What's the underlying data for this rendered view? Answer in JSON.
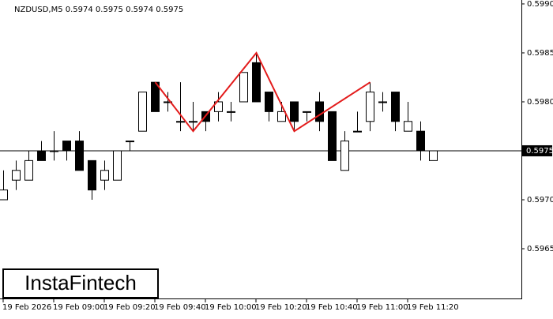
{
  "chart_data": {
    "type": "candlestick",
    "title": "NZDUSD,M5  0.5974 0.5975 0.5974 0.5975",
    "categories": [
      "19 Feb 2026",
      null,
      null,
      null,
      "19 Feb 09:00",
      null,
      null,
      null,
      "19 Feb 09:20",
      null,
      null,
      null,
      "19 Feb 09:40",
      null,
      null,
      null,
      "19 Feb 10:00",
      null,
      null,
      null,
      "19 Feb 10:20",
      null,
      null,
      null,
      "19 Feb 10:40",
      null,
      null,
      null,
      "19 Feb 11:00",
      null,
      null,
      null,
      "19 Feb 11:20",
      null,
      null
    ],
    "open": [
      0.597,
      0.5972,
      0.5972,
      0.5975,
      0.5975,
      0.5976,
      0.5976,
      0.5974,
      0.5972,
      0.5972,
      0.5976,
      0.5977,
      0.5982,
      0.598,
      0.5978,
      0.5978,
      0.5979,
      0.5979,
      0.5979,
      0.598,
      0.5984,
      0.5981,
      0.5978,
      0.598,
      0.5979,
      0.598,
      0.5979,
      0.5973,
      0.5977,
      0.5978,
      0.598,
      0.5981,
      0.5977,
      0.5977,
      0.5974
    ],
    "high": [
      0.5973,
      0.5974,
      0.5975,
      0.5976,
      0.5977,
      0.5976,
      0.5977,
      0.5974,
      0.5974,
      0.5975,
      0.5976,
      0.5981,
      0.5982,
      0.5981,
      0.5982,
      0.598,
      0.5979,
      0.5981,
      0.598,
      0.5983,
      0.5985,
      0.5981,
      0.598,
      0.598,
      0.5979,
      0.5981,
      0.5979,
      0.5977,
      0.5979,
      0.5982,
      0.5981,
      0.5981,
      0.598,
      0.5978,
      0.5975
    ],
    "low": [
      0.597,
      0.5971,
      0.5972,
      0.5974,
      0.5974,
      0.5974,
      0.5973,
      0.597,
      0.5971,
      0.5972,
      0.5975,
      0.5977,
      0.5979,
      0.5979,
      0.5977,
      0.5977,
      0.5977,
      0.5978,
      0.5978,
      0.598,
      0.598,
      0.5978,
      0.5978,
      0.5977,
      0.5978,
      0.5977,
      0.5974,
      0.5973,
      0.5977,
      0.5977,
      0.5979,
      0.5977,
      0.5977,
      0.5974,
      0.5974
    ],
    "close": [
      0.5971,
      0.5973,
      0.5974,
      0.5974,
      0.5975,
      0.5975,
      0.5973,
      0.5971,
      0.5973,
      0.5975,
      0.5976,
      0.5981,
      0.5979,
      0.598,
      0.5978,
      0.5978,
      0.5978,
      0.598,
      0.5979,
      0.5983,
      0.598,
      0.5979,
      0.5979,
      0.5978,
      0.5979,
      0.5978,
      0.5974,
      0.5976,
      0.5977,
      0.5981,
      0.598,
      0.5978,
      0.5978,
      0.5975,
      0.5975
    ],
    "ylim": [
      0.596,
      0.59904
    ],
    "yticks": [
      {
        "value": 0.599,
        "label": "0.5990"
      },
      {
        "value": 0.5985,
        "label": "0.5985"
      },
      {
        "value": 0.598,
        "label": "0.5980"
      },
      {
        "value": 0.597,
        "label": "0.5970"
      },
      {
        "value": 0.5965,
        "label": "0.5965"
      }
    ],
    "current_price": {
      "value": 0.5975,
      "label": "0.5975"
    },
    "pattern": {
      "color": "#e31b1b",
      "x": [
        12,
        15,
        20,
        23,
        29
      ],
      "values": [
        0.5982,
        0.5977,
        0.5985,
        0.5977,
        0.5982
      ]
    },
    "logo": "InstaFintech"
  }
}
